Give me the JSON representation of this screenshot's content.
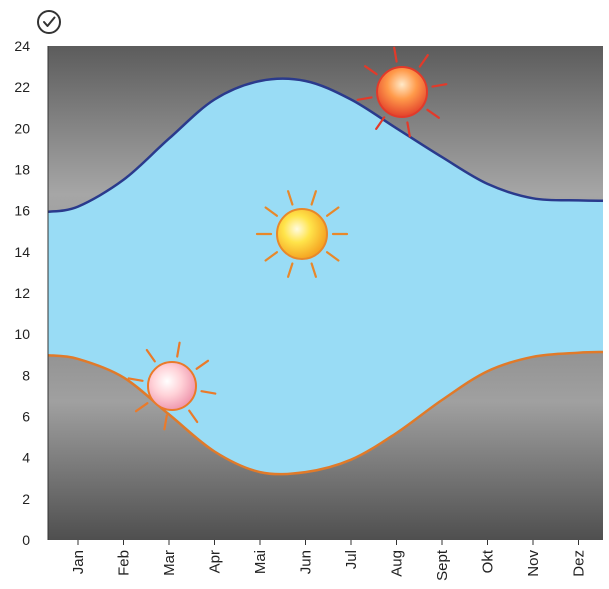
{
  "chart_data": {
    "type": "area",
    "title": "",
    "xlabel": "",
    "ylabel": "",
    "ylim": [
      0,
      24
    ],
    "yticks": [
      "0",
      "2",
      "4",
      "6",
      "8",
      "10",
      "12",
      "14",
      "16",
      "18",
      "20",
      "22",
      "24"
    ],
    "categories": [
      "Jan",
      "Feb",
      "Mar",
      "Apr",
      "Mai",
      "Jun",
      "Jul",
      "Aug",
      "Sept",
      "Okt",
      "Nov",
      "Dez"
    ],
    "series": [
      {
        "values": [
          16.2,
          17.5,
          19.5,
          21.4,
          22.3,
          22.3,
          21.4,
          20.0,
          18.6,
          17.3,
          16.6,
          16.5
        ]
      },
      {
        "values": [
          8.8,
          7.9,
          6.1,
          4.3,
          3.3,
          3.3,
          3.9,
          5.2,
          6.8,
          8.2,
          8.9,
          9.1
        ]
      }
    ],
    "grid": false,
    "legend": "none",
    "colors": {
      "band": "#99dcf5",
      "upper_line": "#2a3a8c",
      "lower_line": "#e07a2a",
      "background_dark": "#5e5e5e",
      "background_light": "#a6a6a6"
    }
  },
  "icons": {
    "top_left": "check-circle-icon",
    "suns": [
      "sunrise-sun-icon",
      "midday-sun-icon",
      "sunset-sun-icon"
    ]
  }
}
